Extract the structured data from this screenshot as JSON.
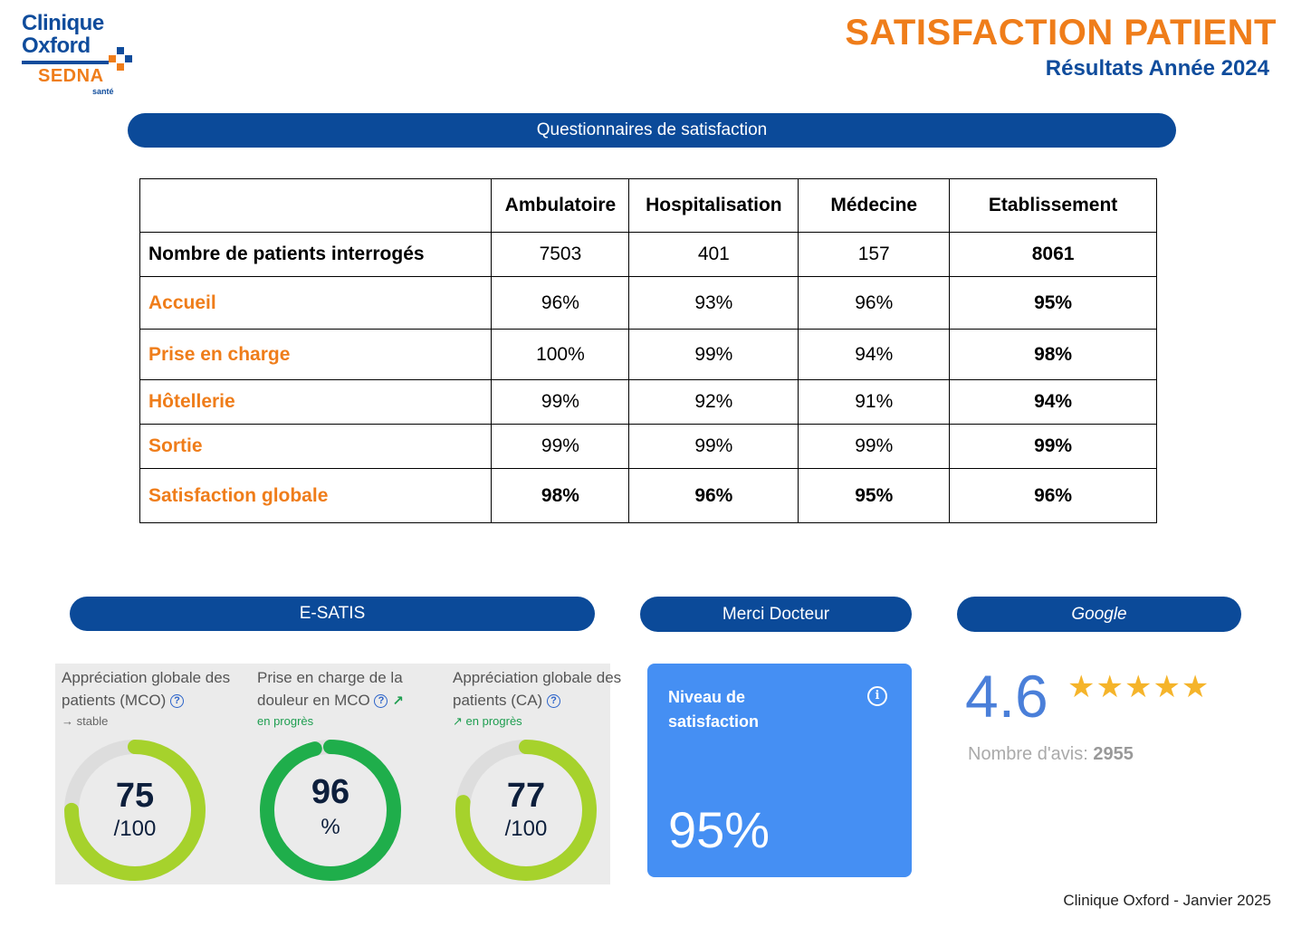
{
  "logo": {
    "line1": "Clinique",
    "line2": "Oxford",
    "brand": "SEDNA",
    "tagline": "santé"
  },
  "header": {
    "title": "SATISFACTION PATIENT",
    "subtitle": "Résultats Année 2024"
  },
  "sections": {
    "questionnaires": "Questionnaires de satisfaction",
    "esatis": "E-SATIS",
    "merci_docteur": "Merci Docteur",
    "google": "Google"
  },
  "table": {
    "headers": [
      "",
      "Ambulatoire",
      "Hospitalisation",
      "Médecine",
      "Etablissement"
    ],
    "rows": [
      {
        "label": "Nombre de patients interrogés",
        "values": [
          "7503",
          "401",
          "157",
          "8061"
        ]
      },
      {
        "label": "Accueil",
        "values": [
          "96%",
          "93%",
          "96%",
          "95%"
        ]
      },
      {
        "label": "Prise en charge",
        "values": [
          "100%",
          "99%",
          "94%",
          "98%"
        ]
      },
      {
        "label": "Hôtellerie",
        "values": [
          "99%",
          "92%",
          "91%",
          "94%"
        ]
      },
      {
        "label": "Sortie",
        "values": [
          "99%",
          "99%",
          "99%",
          "99%"
        ]
      },
      {
        "label": "Satisfaction globale",
        "values": [
          "98%",
          "96%",
          "95%",
          "96%"
        ]
      }
    ]
  },
  "esatis": {
    "gauges": [
      {
        "label": "Appréciation globale des patients (MCO)",
        "trend": "stable",
        "trend_icon": "arrow-right-icon",
        "value": "75",
        "unit": "/100",
        "fraction": 0.75,
        "color": "#a6d22c"
      },
      {
        "label": "Prise en charge de la douleur en MCO",
        "trend": "en progrès",
        "trend_icon": "arrow-up-right-icon",
        "value": "96",
        "unit": "%",
        "fraction": 0.96,
        "color": "#1fae4b"
      },
      {
        "label": "Appréciation globale des patients (CA)",
        "trend": "en progrès",
        "trend_icon": "arrow-up-right-icon",
        "value": "77",
        "unit": "/100",
        "fraction": 0.77,
        "color": "#a6d22c"
      }
    ]
  },
  "merci_docteur": {
    "label": "Niveau de satisfaction",
    "value": "95%",
    "info_icon": "info-icon"
  },
  "google": {
    "rating": "4.6",
    "stars": "★★★★★",
    "reviews_label": "Nombre d'avis:",
    "reviews_count": "2955"
  },
  "footer": "Clinique Oxford - Janvier 2025",
  "colors": {
    "blue": "#0b4a99",
    "orange": "#ef7d1a",
    "merci_blue": "#458ff3"
  }
}
